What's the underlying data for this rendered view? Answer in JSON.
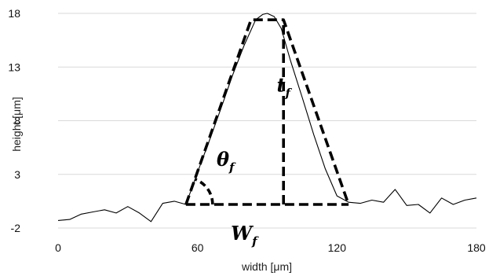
{
  "chart_data": {
    "type": "line",
    "xlabel": "width [μm]",
    "ylabel": "height [μm]",
    "xlim": [
      0,
      180
    ],
    "ylim": [
      -2,
      18
    ],
    "xticks": [
      0,
      60,
      120,
      180
    ],
    "yticks": [
      -2,
      3,
      8,
      13,
      18
    ],
    "grid": "horizontal",
    "series": [
      {
        "style": "thin solid black",
        "x": [
          0,
          5,
          10,
          15,
          20,
          25,
          30,
          35,
          40,
          45,
          50,
          55,
          60,
          65,
          70,
          75,
          80,
          85,
          88,
          90,
          93,
          96,
          100,
          105,
          110,
          115,
          120,
          125,
          130,
          135,
          140,
          145,
          150,
          155,
          160,
          165,
          170,
          175,
          180
        ],
        "y": [
          -1.3,
          -1.2,
          -0.7,
          -0.5,
          -0.3,
          -0.6,
          0,
          -0.6,
          -1.4,
          0.3,
          0.5,
          0.2,
          3.2,
          6.1,
          9.1,
          12.2,
          15.0,
          17.4,
          17.9,
          18.0,
          17.7,
          16.6,
          13.6,
          10.2,
          6.7,
          3.5,
          1.0,
          0.4,
          0.3,
          0.6,
          0.4,
          1.6,
          0.1,
          0.2,
          -0.6,
          0.8,
          0.2,
          0.6,
          0.8
        ]
      },
      {
        "style": "thick dashed black",
        "x": [
          55,
          83,
          97,
          125
        ],
        "y": [
          0.2,
          17.4,
          17.4,
          0.2
        ]
      },
      {
        "style": "thick dashed black",
        "x": [
          55,
          125
        ],
        "y": [
          0.2,
          0.2
        ]
      },
      {
        "style": "thick dashed black",
        "x": [
          97,
          97
        ],
        "y": [
          0.2,
          17.4
        ]
      }
    ],
    "annotations": [
      {
        "base": "θ",
        "sub": "f",
        "x": 72,
        "y": 3.8
      },
      {
        "base": "t",
        "sub": "f",
        "x": 97,
        "y": 10.7
      },
      {
        "base": "W",
        "sub": "f",
        "x": 80,
        "y": -3.1
      }
    ]
  }
}
